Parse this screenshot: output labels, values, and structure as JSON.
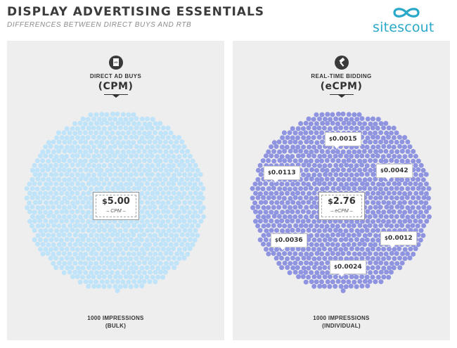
{
  "header": {
    "title": "DISPLAY ADVERTISING ESSENTIALS",
    "subtitle": "DIFFERENCES BETWEEN DIRECT BUYS AND RTB",
    "logo_text": "sitescout",
    "logo_icon": "infinity-icon",
    "brand_color": "#2aa8c9"
  },
  "left_panel": {
    "icon": "io-document-icon",
    "icon_text": "I/O",
    "label": "DIRECT AD BUYS",
    "metric": "(CPM)",
    "center_value_symbol": "$",
    "center_value": "5.00",
    "center_label": "– CPM –",
    "footer_line1": "1000 IMPRESSIONS",
    "footer_line2": "(BULK)",
    "dot_color": "#bfe3f9"
  },
  "right_panel": {
    "icon": "gavel-icon",
    "label": "REAL-TIME BIDDING",
    "metric": "(eCPM)",
    "center_value_symbol": "$",
    "center_value": "2.76",
    "center_label": "– eCPM –",
    "footer_line1": "1000 IMPRESSIONS",
    "footer_line2": "(INDIVIDUAL)",
    "dot_color": "#8f94e0",
    "bids": [
      {
        "symbol": "$",
        "value": "0.0015"
      },
      {
        "symbol": "$",
        "value": "0.0113"
      },
      {
        "symbol": "$",
        "value": "0.0042"
      },
      {
        "symbol": "$",
        "value": "0.0036"
      },
      {
        "symbol": "$",
        "value": "0.0012"
      },
      {
        "symbol": "$",
        "value": "0.0024"
      }
    ]
  }
}
